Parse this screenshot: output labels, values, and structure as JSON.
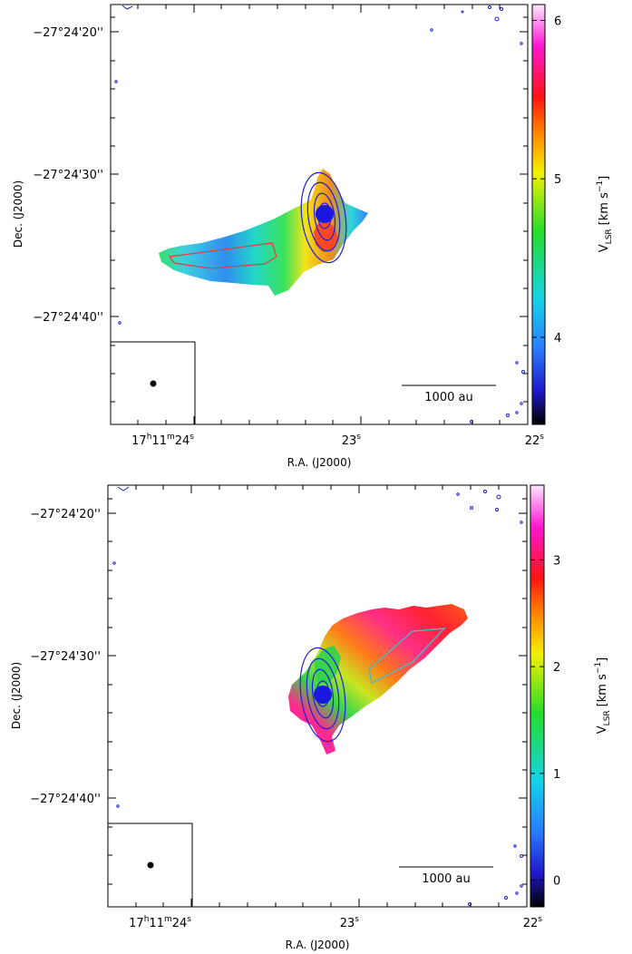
{
  "chart_data": [
    {
      "type": "heatmap",
      "xlabel": "R.A. (J2000)",
      "ylabel": "Dec. (J2000)",
      "x_ticks": [
        {
          "h": "17",
          "m": "11",
          "s": "24",
          "full": true
        },
        {
          "s": "23",
          "full": false
        },
        {
          "s": "22",
          "full": false
        }
      ],
      "y_ticks": [
        "−27°24'20''",
        "−27°24'30''",
        "−27°24'40''"
      ],
      "colorbar": {
        "label_main": "V",
        "label_sub": "LSR",
        "label_unit": "[km s",
        "label_exp": "−1",
        "label_close": "]",
        "range": [
          3.45,
          6.1
        ],
        "ticks": [
          4,
          5,
          6
        ]
      },
      "scale_bar": "1000 au",
      "continuum_contours": 5,
      "polygon_color": "#e0413a"
    },
    {
      "type": "heatmap",
      "xlabel": "R.A. (J2000)",
      "ylabel": "Dec. (J2000)",
      "x_ticks": [
        {
          "h": "17",
          "m": "11",
          "s": "24",
          "full": true
        },
        {
          "s": "23",
          "full": false
        },
        {
          "s": "22",
          "full": false
        }
      ],
      "y_ticks": [
        "−27°24'20''",
        "−27°24'30''",
        "−27°24'40''"
      ],
      "colorbar": {
        "label_main": "V",
        "label_sub": "LSR",
        "label_unit": "[km s",
        "label_exp": "−1",
        "label_close": "]",
        "range": [
          -0.25,
          3.7
        ],
        "ticks": [
          0,
          1,
          2,
          3
        ]
      },
      "scale_bar": "1000 au",
      "continuum_contours": 5,
      "polygon_color": "#48b6c4"
    }
  ]
}
